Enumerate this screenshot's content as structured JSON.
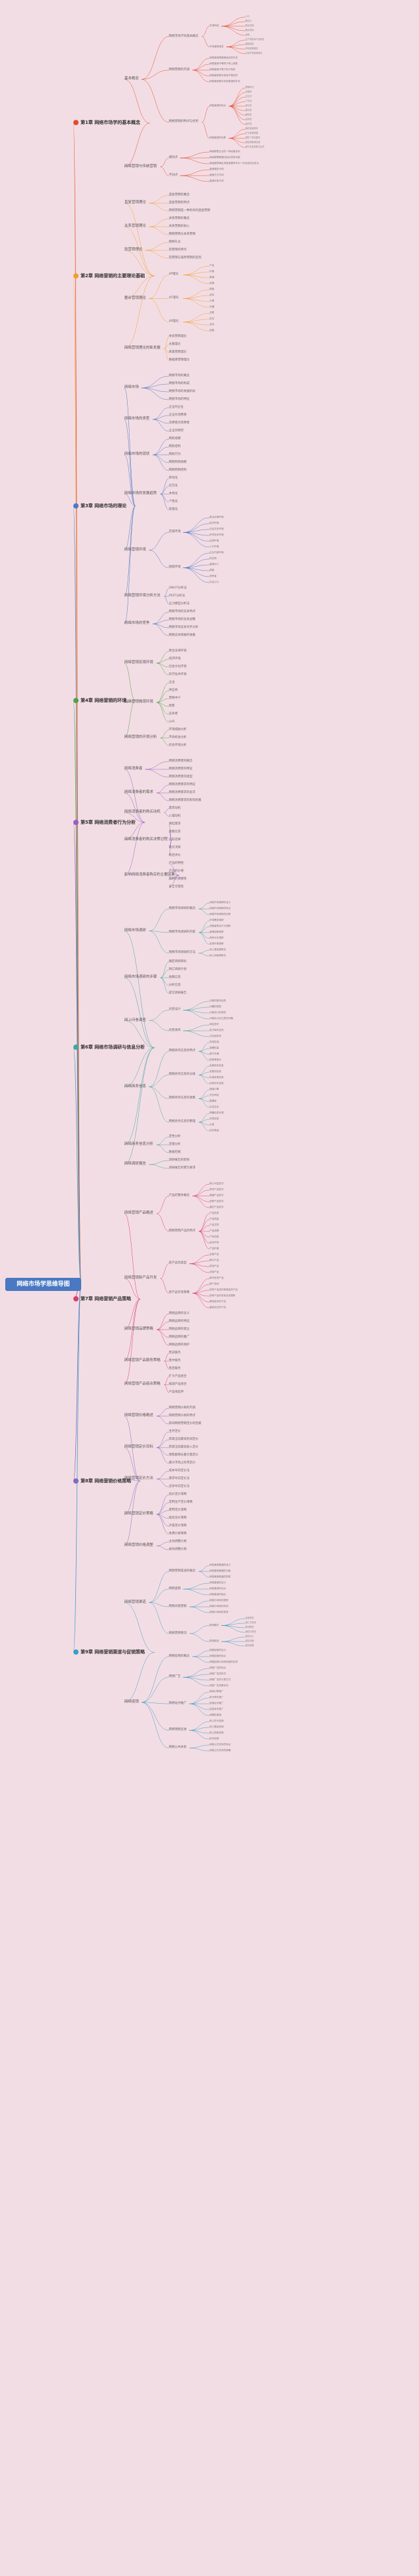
{
  "root": "网络市场学思维导图",
  "colors": {
    "root": "#4a78c2",
    "chapters": [
      "#e34b2d",
      "#f0a030",
      "#4b79c8",
      "#4ca24c",
      "#9a5cc6",
      "#3fa7a0",
      "#d4406f",
      "#7d6cc0",
      "#3b9ec9"
    ]
  },
  "chapters": [
    {
      "label": "第1章 网络市场学的基本概念",
      "children": [
        {
          "label": "基本概念",
          "children": [
            {
              "label": "网络市场学的基本概念",
              "children": [
                {
                  "label": "市场构成",
                  "children": [
                    "人口",
                    "购买力",
                    "购买欲望",
                    "购买权利",
                    "商品"
                  ]
                },
                {
                  "label": "市场营销观念",
                  "children": [
                    "生产观念和产品观念",
                    "推销观念",
                    "市场营销观念",
                    "社会市场营销观念"
                  ]
                }
              ]
            },
            {
              "label": "网络营销的内涵",
              "children": [
                "网络营销是营销组合的补充",
                "网络营销不等同于网上销售",
                "网络营销不等于电子商务",
                "网络营销是手段而不是目的",
                "网络营销是对传统营销的补充"
              ]
            },
            {
              "label": "网络营销的特点与优势",
              "children": [
                {
                  "label": "网络营销的特点",
                  "children": [
                    "跨越时空",
                    "多媒体",
                    "交互式",
                    "个性化",
                    "成长性",
                    "整合性",
                    "超前性",
                    "高效性",
                    "经济性"
                  ]
                },
                {
                  "label": "网络营销的优势",
                  "children": [
                    "降低营销成本",
                    "扩大营销范围",
                    "提供个性化服务",
                    "提高顾客满意度",
                    "便于信息收集与反馈"
                  ]
                }
              ]
            }
          ]
        },
        {
          "label": "网络营销与传统营销",
          "children": [
            {
              "label": "相同点",
              "children": [
                "两者都是企业的一种经营活动",
                "两者都需要通过组合发挥功能",
                "两者都把满足消费者需求作为一切活动的出发点"
              ]
            },
            {
              "label": "不同点",
              "children": [
                "营销理念不同",
                "营销方式不同",
                "营销手段不同"
              ]
            }
          ]
        }
      ]
    },
    {
      "label": "第2章 网络营销的主要理论基础",
      "children": [
        {
          "label": "直复营销理论",
          "children": [
            "直复营销的概念",
            "直复营销的特点",
            "网络营销是一种有效的直复营销"
          ]
        },
        {
          "label": "关系营销理论",
          "children": [
            "关系营销的概念",
            "关系营销的核心",
            "网络营销与关系营销"
          ]
        },
        {
          "label": "软营销理论",
          "children": [
            "网络礼仪",
            "软营销的特点",
            "软营销与强势营销的区别"
          ]
        },
        {
          "label": "整合营销理论",
          "children": [
            {
              "label": "4P理论",
              "children": [
                "产品",
                "价格",
                "渠道",
                "促销"
              ]
            },
            {
              "label": "4C理论",
              "children": [
                "顾客",
                "成本",
                "方便",
                "沟通"
              ]
            },
            {
              "label": "4R理论",
              "children": [
                "关联",
                "反应",
                "关系",
                "回报"
              ]
            }
          ]
        },
        {
          "label": "网络营销理论的新发展",
          "children": [
            "体验营销理论",
            "长尾理论",
            "病毒营销理论",
            "数据库营销理论"
          ]
        }
      ]
    },
    {
      "label": "第3章 网络市场的理论",
      "children": [
        {
          "label": "网络市场",
          "children": [
            "网络市场的概念",
            "网络市场的构成",
            "网络市场的发展阶段",
            "网络市场的特征"
          ]
        },
        {
          "label": "网络市场的类型",
          "children": [
            "企业对企业",
            "企业对消费者",
            "消费者对消费者",
            "企业对政府"
          ]
        },
        {
          "label": "网络市场的现状",
          "children": [
            "网民规模",
            "网民结构",
            "网民行为",
            "网络购物规模",
            "网络购物结构"
          ]
        },
        {
          "label": "网络市场的发展趋势",
          "children": [
            "移动化",
            "社交化",
            "本地化",
            "个性化",
            "智能化"
          ]
        },
        {
          "label": "网络营销环境",
          "children": [
            {
              "label": "宏观环境",
              "children": [
                "政治法律环境",
                "经济环境",
                "社会文化环境",
                "科学技术环境",
                "自然环境",
                "人口环境"
              ]
            },
            {
              "label": "微观环境",
              "children": [
                "企业内部环境",
                "供应商",
                "营销中介",
                "顾客",
                "竞争者",
                "社会公众"
              ]
            }
          ]
        },
        {
          "label": "网络营销环境分析方法",
          "children": [
            "SWOT分析法",
            "PEST分析法",
            "五力模型分析法"
          ]
        },
        {
          "label": "网络市场的竞争",
          "children": [
            "网络市场的竞争特点",
            "网络市场的竞争战略",
            "网络市场竞争对手分析",
            "网络竞争情报的收集"
          ]
        }
      ]
    },
    {
      "label": "第4章 网络营销的环境",
      "children": [
        {
          "label": "网络营销宏观环境",
          "children": [
            "政治法律环境",
            "经济环境",
            "社会文化环境",
            "科学技术环境"
          ]
        },
        {
          "label": "网络营销微观环境",
          "children": [
            "企业",
            "供应商",
            "营销中介",
            "顾客",
            "竞争者",
            "公众"
          ]
        },
        {
          "label": "网络营销的环境分析",
          "children": [
            "环境威胁分析",
            "市场机会分析",
            "综合环境分析"
          ]
        }
      ]
    },
    {
      "label": "第5章 网络消费者行为分析",
      "children": [
        {
          "label": "网络消费者",
          "children": [
            "网络消费者的概念",
            "网络消费者的特征",
            "网络消费者的类型"
          ]
        },
        {
          "label": "网络消费者的需求",
          "children": [
            "网络消费需求的特征",
            "网络消费需求的层次",
            "网络消费需求的影响因素"
          ]
        },
        {
          "label": "网络消费者的购买动机",
          "children": [
            "需求动机",
            "心理动机"
          ]
        },
        {
          "label": "网络消费者的购买决策过程",
          "children": [
            "唤起需求",
            "收集信息",
            "比较选择",
            "购买决策",
            "购后评价"
          ]
        },
        {
          "label": "影响网络消费者购买的主要因素",
          "children": [
            "产品的特性",
            "产品的价格",
            "购物的便捷性",
            "安全可靠性"
          ]
        }
      ]
    },
    {
      "label": "第6章 网络市场调研与信息分析",
      "children": [
        {
          "label": "网络市场调研",
          "children": [
            {
              "label": "网络市场调研的概念",
              "children": [
                "网络市场调研的含义",
                "网络市场调研的特点",
                "网络市场调研的优势"
              ]
            },
            {
              "label": "网络市场调研的内容",
              "children": [
                "市场需求调研",
                "消费者购买行为调研",
                "营销因素调研",
                "竞争对手调研",
                "宏观环境调研"
              ]
            },
            {
              "label": "网络市场调研的方法",
              "children": [
                "网上直接调研法",
                "网上间接调研法"
              ]
            }
          ]
        },
        {
          "label": "网络市场调研的步骤",
          "children": [
            "确定调研目标",
            "制订调研计划",
            "收集信息",
            "分析信息",
            "提交调研报告"
          ]
        },
        {
          "label": "网上问卷调查",
          "children": [
            {
              "label": "问卷设计",
              "children": [
                "问卷的基本结构",
                "问题的类型",
                "问卷设计的原则",
                "问卷设计应注意的问题"
              ]
            },
            {
              "label": "问卷发布",
              "children": [
                "网站发布",
                "电子邮件发布",
                "讨论组发布"
              ]
            }
          ]
        },
        {
          "label": "网络商务信息",
          "children": [
            {
              "label": "网络商务信息的特点",
              "children": [
                "时效性强",
                "准确性高",
                "便于存储",
                "检索难度大"
              ]
            },
            {
              "label": "网络商务信息的分级",
              "children": [
                "免费商务信息",
                "低费用信息",
                "标准收费信息",
                "优质优价信息"
              ]
            },
            {
              "label": "网络商务信息的收集",
              "children": [
                "搜索引擎",
                "专业网站",
                "数据库",
                "论坛社区"
              ]
            },
            {
              "label": "网络商务信息的整理",
              "children": [
                "明确信息来源",
                "浏览信息",
                "分类",
                "初步筛选"
              ]
            }
          ]
        },
        {
          "label": "网络商务信息分析",
          "children": [
            "定性分析",
            "定量分析",
            "数据挖掘"
          ]
        },
        {
          "label": "网络调研报告",
          "children": [
            "调研报告的结构",
            "调研报告的撰写要求"
          ]
        }
      ]
    },
    {
      "label": "第7章 网络营销产品策略",
      "children": [
        {
          "label": "网络营销产品概述",
          "children": [
            {
              "label": "产品的整体概念",
              "children": [
                "核心利益层次",
                "有形产品层次",
                "期望产品层次",
                "延伸产品层次",
                "潜在产品层次"
              ]
            },
            {
              "label": "网络营销产品的特点",
              "children": [
                "产品性质",
                "产品质量",
                "产品式样",
                "产品品牌",
                "产品包装",
                "目标市场",
                "产品价格"
              ]
            }
          ]
        },
        {
          "label": "网络营销新产品开发",
          "children": [
            {
              "label": "新产品的类型",
              "children": [
                "全新产品",
                "换代产品",
                "改进产品",
                "仿制产品"
              ]
            },
            {
              "label": "新产品开发策略",
              "children": [
                "新问世的产品",
                "新产品线",
                "现有产品线外新增加的产品",
                "现有产品的改良品或更新",
                "降低成本的产品",
                "重新定位的产品"
              ]
            }
          ]
        },
        {
          "label": "网络营销品牌策略",
          "children": [
            "网络品牌的含义",
            "网络品牌的特征",
            "网络品牌的建立",
            "网络品牌的推广",
            "网络品牌的保护"
          ]
        },
        {
          "label": "网络营销产品服务策略",
          "children": [
            "售前服务",
            "售中服务",
            "售后服务"
          ]
        },
        {
          "label": "网络营销产品组合策略",
          "children": [
            "扩大产品组合",
            "缩减产品组合",
            "产品线延伸"
          ]
        }
      ]
    },
    {
      "label": "第8章 网络营销价格策略",
      "children": [
        {
          "label": "网络营销价格概述",
          "children": [
            "网络营销价格的内涵",
            "网络营销价格的特点",
            "影响网络营销定价的因素"
          ]
        },
        {
          "label": "网络营销定价目标",
          "children": [
            "生存定价",
            "获取当前最高利润定价",
            "获取当前最高收入定价",
            "销售额增长最大量定价",
            "最大市场占有率定价"
          ]
        },
        {
          "label": "网络营销定价方法",
          "children": [
            "成本导向定价法",
            "需求导向定价法",
            "竞争导向定价法"
          ]
        },
        {
          "label": "网络营销定价策略",
          "children": [
            "低价定价策略",
            "定制生产定价策略",
            "使用定价策略",
            "拍卖竞价策略",
            "声誉定价策略",
            "免费价格策略"
          ]
        },
        {
          "label": "网络营销价格调整",
          "children": [
            "主动调整价格",
            "被动调整价格"
          ]
        }
      ]
    },
    {
      "label": "第9章 网络营销渠道与促销策略",
      "children": [
        {
          "label": "网络营销渠道",
          "children": [
            {
              "label": "网络营销渠道的概念",
              "children": [
                "网络营销渠道的含义",
                "网络营销渠道的功能",
                "网络营销渠道的类型"
              ]
            },
            {
              "label": "网络直销",
              "children": [
                "网络直销的含义",
                "网络直销的优点",
                "网络直销的缺点"
              ]
            },
            {
              "label": "网络间接营销",
              "children": [
                "网络中间商的类型",
                "网络中间商的作用",
                "网络中间商的选择"
              ]
            },
            {
              "label": "网络营销物流",
              "children": [
                {
                  "label": "物流模式",
                  "children": [
                    "自营物流",
                    "第三方物流",
                    "物流联盟",
                    "第四方物流"
                  ]
                },
                {
                  "label": "物流配送",
                  "children": [
                    "配送中心",
                    "配送流程",
                    "配送管理"
                  ]
                }
              ]
            }
          ]
        },
        {
          "label": "网络促销",
          "children": [
            {
              "label": "网络促销的概念",
              "children": [
                "网络促销的含义",
                "网络促销的特点",
                "网络促销与传统促销的区别"
              ]
            },
            {
              "label": "网络广告",
              "children": [
                "网络广告的特点",
                "网络广告的形式",
                "网络广告的计费方式",
                "网络广告效果评估"
              ]
            },
            {
              "label": "网络站点推广",
              "children": [
                "搜索引擎推广",
                "电子邮件推广",
                "资源合作推广",
                "信息发布推广",
                "病毒性营销"
              ]
            },
            {
              "label": "网络销售促进",
              "children": [
                "网上折价促销",
                "网上赠品促销",
                "网上抽奖促销",
                "积分促销"
              ]
            },
            {
              "label": "网络公共关系",
              "children": [
                "网络公共关系的特点",
                "网络公共关系的策略"
              ]
            }
          ]
        }
      ]
    }
  ]
}
